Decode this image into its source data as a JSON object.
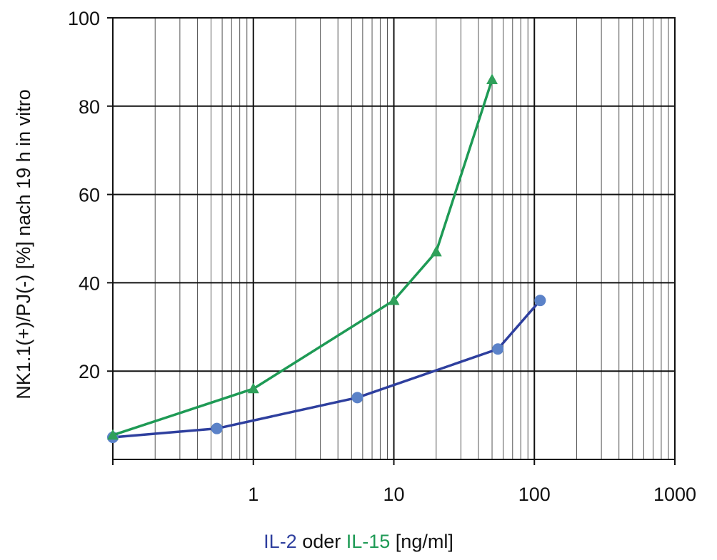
{
  "chart_data": {
    "type": "line",
    "title": "",
    "ylabel": "NK1.1(+)/PJ(-)  [%] nach 19 h in vitro",
    "xlabel": {
      "parts": [
        {
          "text": "IL-2",
          "color": "#2e3f9e"
        },
        {
          "text": " oder ",
          "color": "#111111"
        },
        {
          "text": "IL-15",
          "color": "#1e9a55"
        },
        {
          "text": " [ng/ml]",
          "color": "#111111"
        }
      ]
    },
    "x_scale": "log",
    "xlim": [
      0.1,
      1000
    ],
    "ylim": [
      0,
      100
    ],
    "x_ticks": [
      {
        "value": 1,
        "label": "1"
      },
      {
        "value": 10,
        "label": "10"
      },
      {
        "value": 100,
        "label": "100"
      },
      {
        "value": 1000,
        "label": "1000"
      }
    ],
    "y_ticks": [
      {
        "value": 20,
        "label": "20"
      },
      {
        "value": 40,
        "label": "40"
      },
      {
        "value": 60,
        "label": "60"
      },
      {
        "value": 80,
        "label": "80"
      },
      {
        "value": 100,
        "label": "100"
      }
    ],
    "grid": true,
    "series": [
      {
        "key": "il2",
        "line_color": "#2e3f9e",
        "marker_color": "#5b82c8",
        "marker": "circle",
        "points": [
          {
            "x": 0.1,
            "y": 5
          },
          {
            "x": 0.55,
            "y": 7
          },
          {
            "x": 5.5,
            "y": 14
          },
          {
            "x": 55,
            "y": 25
          },
          {
            "x": 110,
            "y": 36
          }
        ]
      },
      {
        "key": "il15",
        "line_color": "#1e9a55",
        "marker_color": "#2fa05a",
        "marker": "triangle",
        "points": [
          {
            "x": 0.1,
            "y": 5.5
          },
          {
            "x": 1,
            "y": 16
          },
          {
            "x": 10,
            "y": 36
          },
          {
            "x": 20,
            "y": 47
          },
          {
            "x": 50,
            "y": 86
          }
        ]
      }
    ]
  }
}
